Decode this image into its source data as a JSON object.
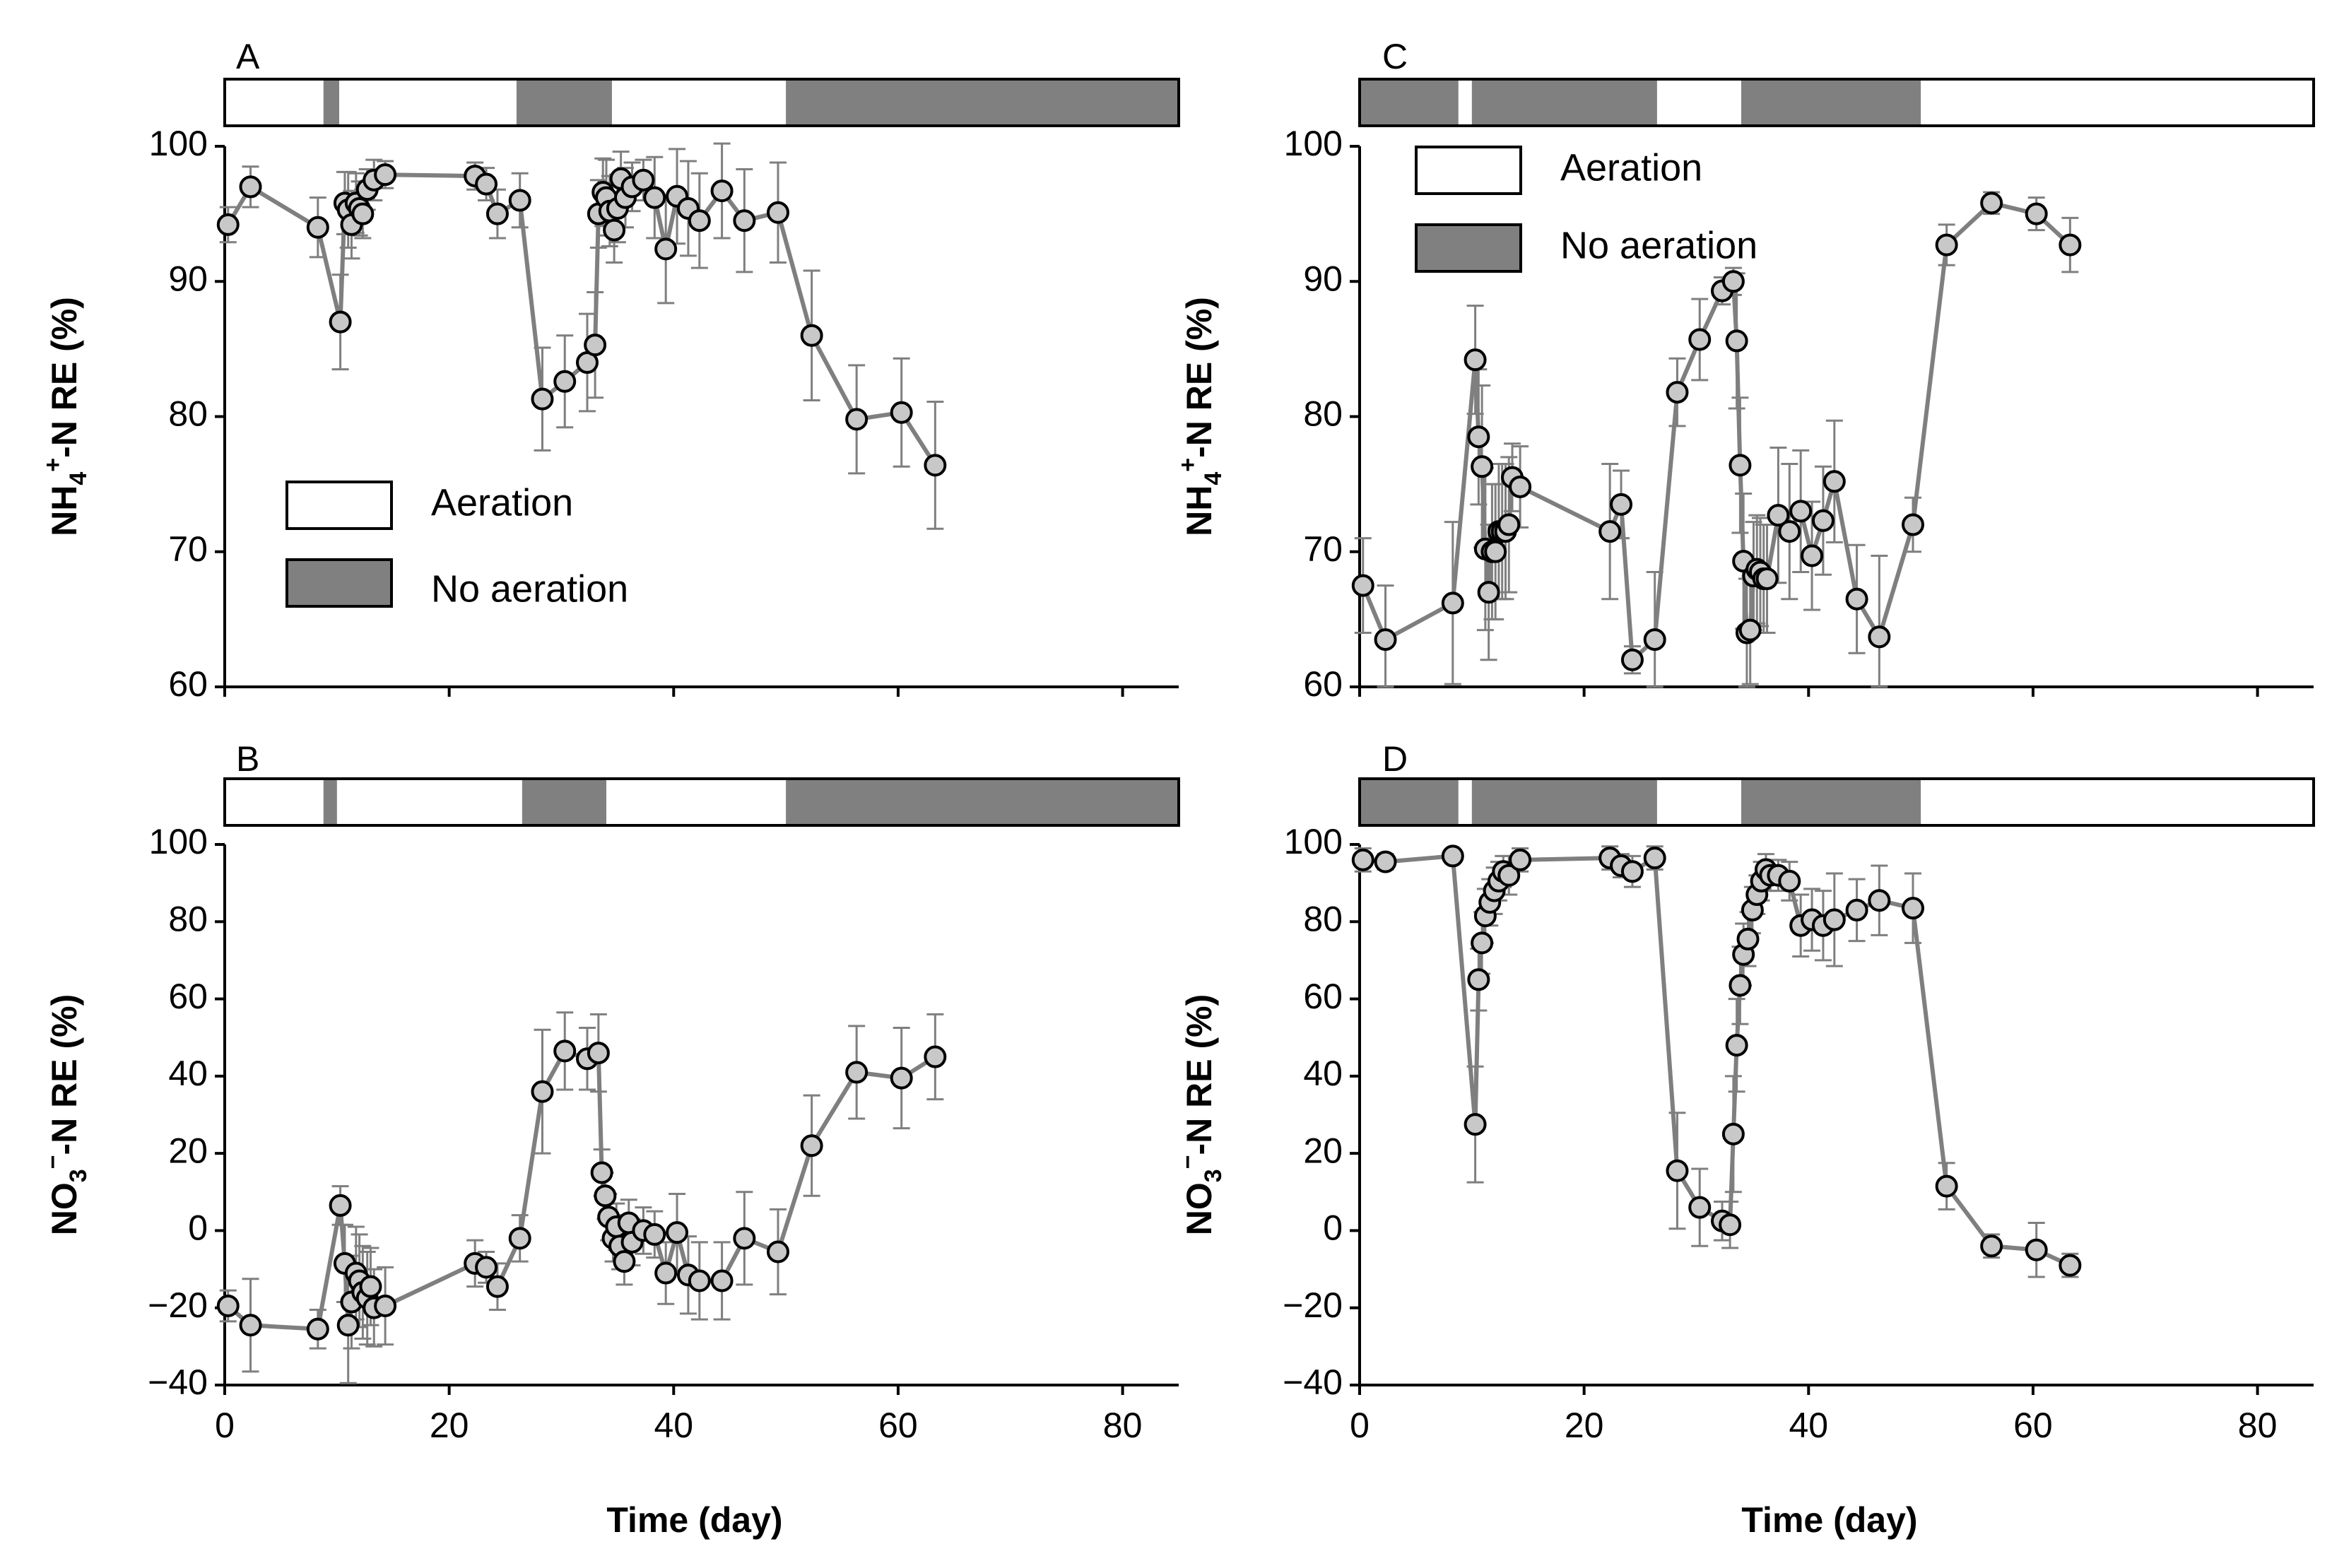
{
  "figure": {
    "xlabel": "Time (day)",
    "legend": {
      "aeration_label": "Aeration",
      "no_aeration_label": "No aeration"
    },
    "colors": {
      "aeration": "#ffffff",
      "no_aeration": "#808080",
      "series": "#7f7f7f",
      "marker_fill": "#c8c8c8"
    }
  },
  "chart_data": [
    {
      "id": "A",
      "label": "A",
      "type": "line",
      "ylabel_main": "NH",
      "ylabel_sub": "4",
      "ylabel_sup": "+",
      "ylabel_rest": "-N RE (%)",
      "xlim": [
        0,
        85
      ],
      "ylim": [
        60,
        100
      ],
      "xticks": [
        0,
        20,
        40,
        60,
        80
      ],
      "xtick_labels": [
        "",
        "",
        "",
        "",
        ""
      ],
      "yticks": [
        60,
        70,
        80,
        90,
        100
      ],
      "ytick_labels": [
        "60",
        "70",
        "80",
        "90",
        "100"
      ],
      "legend_position": "lower-left",
      "no_aeration_periods": [
        [
          8.8,
          10.2
        ],
        [
          26,
          34.5
        ],
        [
          50,
          85
        ]
      ],
      "points": [
        {
          "x": 0.3,
          "y": 94.2,
          "e": 1.3
        },
        {
          "x": 2.3,
          "y": 97.0,
          "e": 1.5
        },
        {
          "x": 8.3,
          "y": 94.0,
          "e": 2.2
        },
        {
          "x": 10.3,
          "y": 87.0,
          "e": 3.5
        },
        {
          "x": 10.7,
          "y": 95.8,
          "e": 2.3
        },
        {
          "x": 11.0,
          "y": 95.3,
          "e": 2.8
        },
        {
          "x": 11.3,
          "y": 94.2,
          "e": 2.5
        },
        {
          "x": 11.7,
          "y": 95.8,
          "e": 2.2
        },
        {
          "x": 12.0,
          "y": 95.4,
          "e": 2.0
        },
        {
          "x": 12.3,
          "y": 95.0,
          "e": 1.8
        },
        {
          "x": 12.7,
          "y": 96.8,
          "e": 1.5
        },
        {
          "x": 13.3,
          "y": 97.5,
          "e": 1.5
        },
        {
          "x": 14.3,
          "y": 97.9,
          "e": 1.0
        },
        {
          "x": 22.3,
          "y": 97.8,
          "e": 1.0
        },
        {
          "x": 23.3,
          "y": 97.2,
          "e": 1.2
        },
        {
          "x": 24.3,
          "y": 95.0,
          "e": 1.8
        },
        {
          "x": 26.3,
          "y": 96.0,
          "e": 2.0
        },
        {
          "x": 28.3,
          "y": 81.3,
          "e": 3.8
        },
        {
          "x": 30.3,
          "y": 82.6,
          "e": 3.4
        },
        {
          "x": 32.3,
          "y": 84.0,
          "e": 3.6
        },
        {
          "x": 33.0,
          "y": 85.3,
          "e": 3.9
        },
        {
          "x": 33.3,
          "y": 95.0,
          "e": 2.5
        },
        {
          "x": 33.7,
          "y": 96.6,
          "e": 2.5
        },
        {
          "x": 34.0,
          "y": 96.2,
          "e": 2.8
        },
        {
          "x": 34.3,
          "y": 95.2,
          "e": 2.6
        },
        {
          "x": 34.7,
          "y": 93.8,
          "e": 2.4
        },
        {
          "x": 35.0,
          "y": 95.4,
          "e": 2.5
        },
        {
          "x": 35.3,
          "y": 97.6,
          "e": 2.0
        },
        {
          "x": 35.7,
          "y": 96.2,
          "e": 2.2
        },
        {
          "x": 36.3,
          "y": 97.0,
          "e": 1.8
        },
        {
          "x": 37.3,
          "y": 97.5,
          "e": 1.5
        },
        {
          "x": 38.3,
          "y": 96.2,
          "e": 3.0
        },
        {
          "x": 39.3,
          "y": 92.4,
          "e": 4.0
        },
        {
          "x": 40.3,
          "y": 96.3,
          "e": 3.5
        },
        {
          "x": 41.3,
          "y": 95.4,
          "e": 3.5
        },
        {
          "x": 42.3,
          "y": 94.5,
          "e": 3.5
        },
        {
          "x": 44.3,
          "y": 96.7,
          "e": 3.5
        },
        {
          "x": 46.3,
          "y": 94.5,
          "e": 3.8
        },
        {
          "x": 49.3,
          "y": 95.1,
          "e": 3.7
        },
        {
          "x": 52.3,
          "y": 86.0,
          "e": 4.8
        },
        {
          "x": 56.3,
          "y": 79.8,
          "e": 4.0
        },
        {
          "x": 60.3,
          "y": 80.3,
          "e": 4.0
        },
        {
          "x": 63.3,
          "y": 76.4,
          "e": 4.7
        }
      ]
    },
    {
      "id": "B",
      "label": "B",
      "type": "line",
      "ylabel_main": "NO",
      "ylabel_sub": "3",
      "ylabel_sup": "−",
      "ylabel_rest": "-N RE (%)",
      "xlim": [
        0,
        85
      ],
      "ylim": [
        -40,
        100
      ],
      "xticks": [
        0,
        20,
        40,
        60,
        80
      ],
      "xtick_labels": [
        "0",
        "20",
        "40",
        "60",
        "80"
      ],
      "yticks": [
        -40,
        -20,
        0,
        20,
        40,
        60,
        80,
        100
      ],
      "ytick_labels": [
        "−40",
        "−20",
        "0",
        "20",
        "40",
        "60",
        "80",
        "100"
      ],
      "no_aeration_periods": [
        [
          8.8,
          10
        ],
        [
          26.5,
          34
        ],
        [
          50,
          85
        ]
      ],
      "points": [
        {
          "x": 0.3,
          "y": -19.5,
          "e": 4
        },
        {
          "x": 2.3,
          "y": -24.5,
          "e": 12
        },
        {
          "x": 8.3,
          "y": -25.5,
          "e": 5
        },
        {
          "x": 10.3,
          "y": 6.5,
          "e": 5
        },
        {
          "x": 10.7,
          "y": -8.5,
          "e": 10
        },
        {
          "x": 11.0,
          "y": -24.5,
          "e": 15
        },
        {
          "x": 11.3,
          "y": -18.5,
          "e": 12
        },
        {
          "x": 11.7,
          "y": -11.0,
          "e": 12
        },
        {
          "x": 12.0,
          "y": -13.0,
          "e": 12
        },
        {
          "x": 12.3,
          "y": -16.0,
          "e": 12
        },
        {
          "x": 12.7,
          "y": -17.5,
          "e": 12
        },
        {
          "x": 13.0,
          "y": -14.5,
          "e": 10
        },
        {
          "x": 13.3,
          "y": -20.0,
          "e": 10
        },
        {
          "x": 14.3,
          "y": -19.5,
          "e": 10
        },
        {
          "x": 22.3,
          "y": -8.5,
          "e": 6
        },
        {
          "x": 23.3,
          "y": -9.5,
          "e": 4
        },
        {
          "x": 24.3,
          "y": -14.5,
          "e": 6
        },
        {
          "x": 26.3,
          "y": -2.0,
          "e": 6
        },
        {
          "x": 28.3,
          "y": 36.0,
          "e": 16
        },
        {
          "x": 30.3,
          "y": 46.5,
          "e": 10
        },
        {
          "x": 32.3,
          "y": 44.5,
          "e": 8
        },
        {
          "x": 33.3,
          "y": 46.0,
          "e": 10
        },
        {
          "x": 33.6,
          "y": 15.0,
          "e": 6
        },
        {
          "x": 33.9,
          "y": 9.0,
          "e": 6
        },
        {
          "x": 34.2,
          "y": 3.5,
          "e": 6
        },
        {
          "x": 34.6,
          "y": -2.0,
          "e": 6
        },
        {
          "x": 34.9,
          "y": 1.0,
          "e": 6
        },
        {
          "x": 35.2,
          "y": -4.0,
          "e": 6
        },
        {
          "x": 35.6,
          "y": -8.0,
          "e": 6
        },
        {
          "x": 36.0,
          "y": 2.0,
          "e": 6
        },
        {
          "x": 36.3,
          "y": -3.0,
          "e": 6
        },
        {
          "x": 37.3,
          "y": 0.0,
          "e": 6
        },
        {
          "x": 38.3,
          "y": -1.0,
          "e": 6
        },
        {
          "x": 39.3,
          "y": -11.0,
          "e": 8
        },
        {
          "x": 40.3,
          "y": -0.5,
          "e": 10
        },
        {
          "x": 41.3,
          "y": -11.5,
          "e": 10
        },
        {
          "x": 42.3,
          "y": -13.0,
          "e": 10
        },
        {
          "x": 44.3,
          "y": -13.0,
          "e": 10
        },
        {
          "x": 46.3,
          "y": -2.0,
          "e": 12
        },
        {
          "x": 49.3,
          "y": -5.5,
          "e": 11
        },
        {
          "x": 52.3,
          "y": 22.0,
          "e": 13
        },
        {
          "x": 56.3,
          "y": 41.0,
          "e": 12
        },
        {
          "x": 60.3,
          "y": 39.5,
          "e": 13
        },
        {
          "x": 63.3,
          "y": 45.0,
          "e": 11
        }
      ]
    },
    {
      "id": "C",
      "label": "C",
      "type": "line",
      "ylabel_main": "NH",
      "ylabel_sub": "4",
      "ylabel_sup": "+",
      "ylabel_rest": "-N RE (%)",
      "xlim": [
        0,
        85
      ],
      "ylim": [
        60,
        100
      ],
      "xticks": [
        0,
        20,
        40,
        60,
        80
      ],
      "xtick_labels": [
        "",
        "",
        "",
        "",
        ""
      ],
      "yticks": [
        60,
        70,
        80,
        90,
        100
      ],
      "ytick_labels": [
        "60",
        "70",
        "80",
        "90",
        "100"
      ],
      "legend_position": "top-left",
      "no_aeration_periods": [
        [
          0,
          8.8
        ],
        [
          10,
          26.5
        ],
        [
          34,
          50
        ]
      ],
      "points": [
        {
          "x": 0.3,
          "y": 67.5,
          "e": 3.5
        },
        {
          "x": 2.3,
          "y": 63.5,
          "e": 4.0
        },
        {
          "x": 8.3,
          "y": 66.2,
          "e": 6.0
        },
        {
          "x": 10.3,
          "y": 84.2,
          "e": 4.0
        },
        {
          "x": 10.6,
          "y": 78.5,
          "e": 5.0
        },
        {
          "x": 10.9,
          "y": 76.3,
          "e": 6.0
        },
        {
          "x": 11.2,
          "y": 70.2,
          "e": 6.0
        },
        {
          "x": 11.5,
          "y": 67.0,
          "e": 5.0
        },
        {
          "x": 11.8,
          "y": 70.0,
          "e": 5.0
        },
        {
          "x": 12.1,
          "y": 70.0,
          "e": 5.0
        },
        {
          "x": 12.4,
          "y": 71.5,
          "e": 5.0
        },
        {
          "x": 12.7,
          "y": 71.5,
          "e": 5.0
        },
        {
          "x": 13.0,
          "y": 71.5,
          "e": 5.0
        },
        {
          "x": 13.3,
          "y": 72.0,
          "e": 5.0
        },
        {
          "x": 13.6,
          "y": 75.5,
          "e": 2.5
        },
        {
          "x": 14.3,
          "y": 74.8,
          "e": 3.0
        },
        {
          "x": 22.3,
          "y": 71.5,
          "e": 5.0
        },
        {
          "x": 23.3,
          "y": 73.5,
          "e": 2.5
        },
        {
          "x": 24.3,
          "y": 62.0,
          "e": 1.0
        },
        {
          "x": 26.3,
          "y": 63.5,
          "e": 5.0
        },
        {
          "x": 28.3,
          "y": 81.8,
          "e": 2.5
        },
        {
          "x": 30.3,
          "y": 85.7,
          "e": 3.0
        },
        {
          "x": 32.3,
          "y": 89.3,
          "e": 1.0
        },
        {
          "x": 33.3,
          "y": 90.0,
          "e": 1.0
        },
        {
          "x": 33.6,
          "y": 85.6,
          "e": 5.0
        },
        {
          "x": 33.9,
          "y": 76.4,
          "e": 5.0
        },
        {
          "x": 34.2,
          "y": 69.3,
          "e": 5.0
        },
        {
          "x": 34.5,
          "y": 64.0,
          "e": 4.0
        },
        {
          "x": 34.8,
          "y": 64.2,
          "e": 4.0
        },
        {
          "x": 35.1,
          "y": 68.2,
          "e": 4.0
        },
        {
          "x": 35.4,
          "y": 68.7,
          "e": 4.0
        },
        {
          "x": 35.7,
          "y": 68.5,
          "e": 4.0
        },
        {
          "x": 36.0,
          "y": 68.0,
          "e": 4.0
        },
        {
          "x": 36.3,
          "y": 68.0,
          "e": 4.0
        },
        {
          "x": 37.3,
          "y": 72.7,
          "e": 5.0
        },
        {
          "x": 38.3,
          "y": 71.5,
          "e": 5.0
        },
        {
          "x": 39.3,
          "y": 73.0,
          "e": 4.5
        },
        {
          "x": 40.3,
          "y": 69.7,
          "e": 4.0
        },
        {
          "x": 41.3,
          "y": 72.3,
          "e": 4.0
        },
        {
          "x": 42.3,
          "y": 75.2,
          "e": 4.5
        },
        {
          "x": 44.3,
          "y": 66.5,
          "e": 4.0
        },
        {
          "x": 46.3,
          "y": 63.7,
          "e": 6.0
        },
        {
          "x": 49.3,
          "y": 72.0,
          "e": 2.0
        },
        {
          "x": 52.3,
          "y": 92.7,
          "e": 1.5
        },
        {
          "x": 56.3,
          "y": 95.8,
          "e": 0.8
        },
        {
          "x": 60.3,
          "y": 95.0,
          "e": 1.2
        },
        {
          "x": 63.3,
          "y": 92.7,
          "e": 2.0
        }
      ]
    },
    {
      "id": "D",
      "label": "D",
      "type": "line",
      "ylabel_main": "NO",
      "ylabel_sub": "3",
      "ylabel_sup": "−",
      "ylabel_rest": "-N RE (%)",
      "xlim": [
        0,
        85
      ],
      "ylim": [
        -40,
        100
      ],
      "xticks": [
        0,
        20,
        40,
        60,
        80
      ],
      "xtick_labels": [
        "0",
        "20",
        "40",
        "60",
        "80"
      ],
      "yticks": [
        -40,
        -20,
        0,
        20,
        40,
        60,
        80,
        100
      ],
      "ytick_labels": [
        "−40",
        "−20",
        "0",
        "20",
        "40",
        "60",
        "80",
        "100"
      ],
      "no_aeration_periods": [
        [
          0,
          8.8
        ],
        [
          10,
          26.5
        ],
        [
          34,
          50
        ]
      ],
      "points": [
        {
          "x": 0.3,
          "y": 96.0,
          "e": 3
        },
        {
          "x": 2.3,
          "y": 95.5,
          "e": 2
        },
        {
          "x": 8.3,
          "y": 97.0,
          "e": 1.5
        },
        {
          "x": 10.3,
          "y": 27.5,
          "e": 15
        },
        {
          "x": 10.6,
          "y": 65.0,
          "e": 8
        },
        {
          "x": 10.9,
          "y": 74.5,
          "e": 8
        },
        {
          "x": 11.2,
          "y": 81.5,
          "e": 7
        },
        {
          "x": 11.6,
          "y": 85.0,
          "e": 6
        },
        {
          "x": 12.0,
          "y": 88.0,
          "e": 6
        },
        {
          "x": 12.4,
          "y": 90.5,
          "e": 5
        },
        {
          "x": 12.8,
          "y": 93.0,
          "e": 4
        },
        {
          "x": 13.3,
          "y": 92.0,
          "e": 5
        },
        {
          "x": 14.3,
          "y": 96.0,
          "e": 3
        },
        {
          "x": 22.3,
          "y": 96.5,
          "e": 3
        },
        {
          "x": 23.3,
          "y": 94.5,
          "e": 3
        },
        {
          "x": 24.3,
          "y": 93.0,
          "e": 4
        },
        {
          "x": 26.3,
          "y": 96.5,
          "e": 3
        },
        {
          "x": 28.3,
          "y": 15.5,
          "e": 15
        },
        {
          "x": 30.3,
          "y": 6.0,
          "e": 10
        },
        {
          "x": 32.3,
          "y": 2.5,
          "e": 5
        },
        {
          "x": 33.0,
          "y": 1.5,
          "e": 6
        },
        {
          "x": 33.3,
          "y": 25.0,
          "e": 15
        },
        {
          "x": 33.6,
          "y": 48.0,
          "e": 12
        },
        {
          "x": 33.9,
          "y": 63.5,
          "e": 10
        },
        {
          "x": 34.2,
          "y": 71.5,
          "e": 8
        },
        {
          "x": 34.6,
          "y": 75.5,
          "e": 7
        },
        {
          "x": 35.0,
          "y": 83.0,
          "e": 6
        },
        {
          "x": 35.4,
          "y": 87.0,
          "e": 5
        },
        {
          "x": 35.8,
          "y": 90.5,
          "e": 5
        },
        {
          "x": 36.2,
          "y": 93.5,
          "e": 4
        },
        {
          "x": 36.6,
          "y": 92.0,
          "e": 4
        },
        {
          "x": 37.3,
          "y": 92.0,
          "e": 4
        },
        {
          "x": 38.3,
          "y": 90.5,
          "e": 5
        },
        {
          "x": 39.3,
          "y": 79.0,
          "e": 8
        },
        {
          "x": 40.3,
          "y": 80.5,
          "e": 8
        },
        {
          "x": 41.3,
          "y": 79.0,
          "e": 9
        },
        {
          "x": 42.3,
          "y": 80.5,
          "e": 12
        },
        {
          "x": 44.3,
          "y": 83.0,
          "e": 8
        },
        {
          "x": 46.3,
          "y": 85.5,
          "e": 9
        },
        {
          "x": 49.3,
          "y": 83.5,
          "e": 9
        },
        {
          "x": 52.3,
          "y": 11.5,
          "e": 6
        },
        {
          "x": 56.3,
          "y": -4.0,
          "e": 3
        },
        {
          "x": 60.3,
          "y": -5.0,
          "e": 7
        },
        {
          "x": 63.3,
          "y": -9.0,
          "e": 3
        }
      ]
    }
  ]
}
